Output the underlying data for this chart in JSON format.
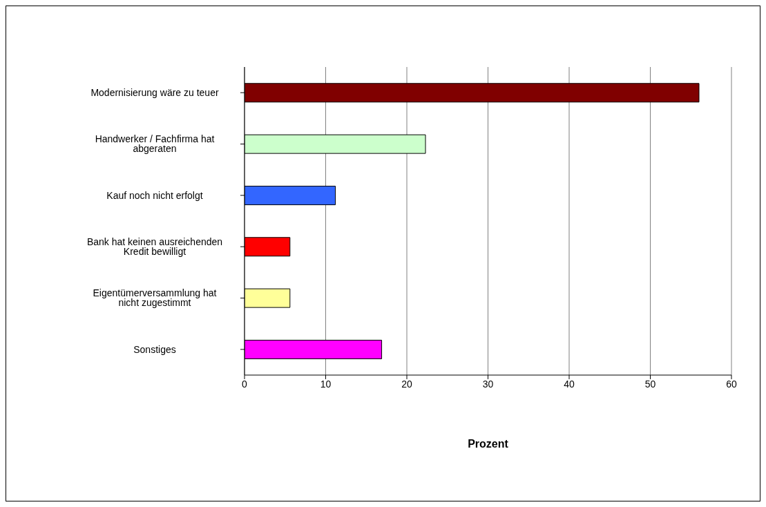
{
  "chart_data": {
    "type": "bar",
    "orientation": "horizontal",
    "xlabel": "Prozent",
    "categories": [
      "Modernisierung wäre zu teuer",
      "Handwerker / Fachfirma hat abgeraten",
      "Kauf noch nicht erfolgt",
      "Bank hat keinen ausreichenden Kredit bewilligt",
      "Eigentümerversammlung hat nicht zugestimmt",
      "Sonstiges"
    ],
    "values": [
      56,
      22.3,
      11.2,
      5.6,
      5.6,
      16.9
    ],
    "colors": [
      "#800000",
      "#ccffcc",
      "#3366ff",
      "#ff0000",
      "#ffff99",
      "#ff00ff"
    ],
    "xlim": [
      0,
      60
    ],
    "xticks": [
      0,
      10,
      20,
      30,
      40,
      50,
      60
    ],
    "grid": "x",
    "legend": false
  }
}
